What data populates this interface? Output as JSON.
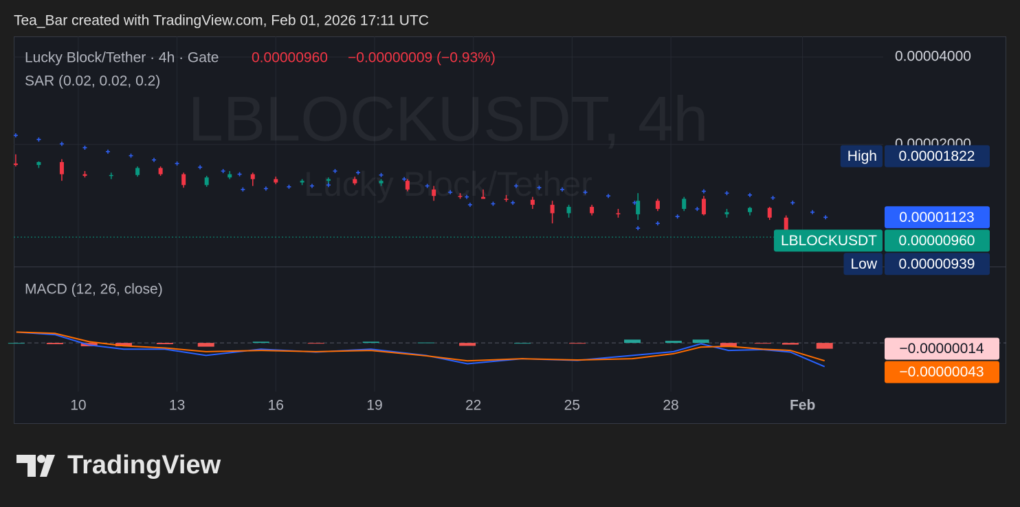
{
  "header": "Tea_Bar created with TradingView.com, Feb 01, 2026 17:11 UTC",
  "brand": "TradingView",
  "chart_data": [
    {
      "type": "candlestick",
      "title": "Lucky Block/Tether · 4h · Gate",
      "last": "0.00000960",
      "change": "−0.00000009 (−0.93%)",
      "watermark": "LBLOCKUSDT, 4h",
      "watermark_sub": "Lucky Block/Tether",
      "x": [
        8.1,
        8.8,
        9.5,
        10.2,
        11.0,
        11.8,
        12.5,
        13.2,
        13.9,
        14.6,
        15.3,
        16.0,
        16.8,
        17.6,
        18.4,
        19.2,
        20.0,
        20.8,
        21.6,
        22.3,
        23.0,
        23.8,
        24.4,
        24.9,
        25.6,
        26.4,
        27.0,
        27.6,
        28.4,
        29.0,
        29.7,
        30.4,
        31.0,
        31.5
      ],
      "open": [
        1.72e-05,
        1.7e-05,
        1.74e-05,
        1.58e-05,
        1.56e-05,
        1.57e-05,
        1.66e-05,
        1.58e-05,
        1.45e-05,
        1.54e-05,
        1.58e-05,
        1.52e-05,
        1.48e-05,
        1.5e-05,
        1.52e-05,
        1.47e-05,
        1.5e-05,
        1.4e-05,
        1.33e-05,
        1.32e-05,
        1.3e-05,
        1.29e-05,
        1.24e-05,
        1.16e-05,
        1.22e-05,
        1.16e-05,
        1.15e-05,
        1.28e-05,
        1.2e-05,
        1.3e-05,
        1.15e-05,
        1.17e-05,
        1.21e-05,
        1.12e-05
      ],
      "high": [
        1.85e-05,
        1.75e-05,
        1.78e-05,
        1.62e-05,
        1.6e-05,
        1.68e-05,
        1.68e-05,
        1.6e-05,
        1.56e-05,
        1.62e-05,
        1.6e-05,
        1.55e-05,
        1.52e-05,
        1.54e-05,
        1.55e-05,
        1.52e-05,
        1.52e-05,
        1.44e-05,
        1.36e-05,
        1.4e-05,
        1.34e-05,
        1.32e-05,
        1.28e-05,
        1.24e-05,
        1.24e-05,
        1.2e-05,
        1.36e-05,
        1.3e-05,
        1.32e-05,
        1.33e-05,
        1.2e-05,
        1.22e-05,
        1.22e-05,
        1.14e-05
      ],
      "low": [
        1.68e-05,
        1.66e-05,
        1.5e-05,
        1.54e-05,
        1.52e-05,
        1.55e-05,
        1.56e-05,
        1.42e-05,
        1.43e-05,
        1.52e-05,
        1.44e-05,
        1.46e-05,
        1.45e-05,
        1.46e-05,
        1.45e-05,
        1.44e-05,
        1.38e-05,
        1.28e-05,
        1.3e-05,
        1.3e-05,
        1.27e-05,
        1.2e-05,
        1.07e-05,
        1.12e-05,
        1.14e-05,
        1.12e-05,
        1.1e-05,
        1.18e-05,
        1.18e-05,
        1.14e-05,
        1.12e-05,
        1.14e-05,
        1.1e-05,
        9.4e-06
      ],
      "close": [
        1.7e-05,
        1.74e-05,
        1.58e-05,
        1.56e-05,
        1.57e-05,
        1.66e-05,
        1.58e-05,
        1.45e-05,
        1.54e-05,
        1.58e-05,
        1.52e-05,
        1.48e-05,
        1.5e-05,
        1.52e-05,
        1.47e-05,
        1.5e-05,
        1.4e-05,
        1.33e-05,
        1.32e-05,
        1.3e-05,
        1.29e-05,
        1.24e-05,
        1.16e-05,
        1.22e-05,
        1.16e-05,
        1.15e-05,
        1.28e-05,
        1.2e-05,
        1.3e-05,
        1.15e-05,
        1.17e-05,
        1.21e-05,
        1.12e-05,
        9.6e-06
      ],
      "up_color": "#089981",
      "down_color": "#f23645",
      "xlim": [
        8.04,
        34.45
      ],
      "xticks": [
        10,
        13,
        16,
        19,
        22,
        25,
        28,
        {
          "value": 32,
          "label": "Feb"
        }
      ],
      "ylim": [
        7.6e-06,
        4.71e-05
      ],
      "yticks": [
        {
          "value": 4e-05,
          "label": "0.00004000"
        },
        {
          "value": 2e-05,
          "label": "0.00002000"
        }
      ],
      "log_scale": true,
      "grid": true,
      "sar": {
        "name": "SAR (0.02, 0.02, 0.2)",
        "color": "#2f5ff0",
        "x": [
          8.1,
          8.8,
          9.5,
          10.2,
          10.9,
          11.6,
          12.3,
          13.0,
          13.7,
          14.4,
          14.9,
          15.0,
          15.7,
          16.4,
          17.1,
          17.6,
          17.8,
          18.5,
          19.2,
          19.9,
          20.6,
          21.3,
          21.8,
          21.9,
          22.6,
          23.2,
          23.3,
          24.0,
          24.7,
          25.4,
          26.1,
          26.9,
          27.0,
          27.6,
          28.2,
          28.8,
          29.0,
          29.7,
          30.4,
          31.1,
          31.7,
          32.3,
          32.7
        ],
        "values": [
          2.15e-05,
          2.08e-05,
          2.01e-05,
          1.95e-05,
          1.89e-05,
          1.83e-05,
          1.77e-05,
          1.72e-05,
          1.67e-05,
          1.62e-05,
          1.58e-05,
          1.4e-05,
          1.41e-05,
          1.43e-05,
          1.44e-05,
          1.45e-05,
          1.62e-05,
          1.6e-05,
          1.57e-05,
          1.52e-05,
          1.44e-05,
          1.37e-05,
          1.32e-05,
          1.24e-05,
          1.25e-05,
          1.26e-05,
          1.44e-05,
          1.42e-05,
          1.4e-05,
          1.37e-05,
          1.33e-05,
          1.26e-05,
          1.03e-05,
          1.07e-05,
          1.13e-05,
          1.2e-05,
          1.38e-05,
          1.36e-05,
          1.34e-05,
          1.31e-05,
          1.26e-05,
          1.17e-05,
          1.123e-05
        ]
      },
      "badges": [
        {
          "name": "High",
          "value": 1.822e-05,
          "label": "0.00001822",
          "color": "#132e63"
        },
        {
          "value": 1.123e-05,
          "label": "0.00001123",
          "color": "#2962ff"
        },
        {
          "name": "LBLOCKUSDT",
          "value": 9.6e-06,
          "label": "0.00000960",
          "color": "#089981"
        },
        {
          "name": "Low",
          "value": 9.39e-06,
          "label": "0.00000939",
          "color": "#132e63"
        }
      ]
    },
    {
      "type": "macd",
      "title": "MACD (12, 26, close)",
      "x": [
        8.12,
        9.29,
        10.33,
        11.38,
        12.63,
        13.88,
        15.55,
        17.22,
        18.89,
        20.56,
        21.82,
        23.49,
        25.16,
        26.83,
        28.08,
        28.91,
        29.75,
        30.79,
        31.63,
        32.67
      ],
      "series": [
        {
          "color": "#2962ff",
          "values": [
            2.6e-07,
            2e-07,
            -5e-08,
            -1.5e-07,
            -1.5e-07,
            -3e-07,
            -1.5e-07,
            -2.2e-07,
            -1.5e-07,
            -3e-07,
            -5e-07,
            -3.8e-07,
            -4.2e-07,
            -3e-07,
            -2.1e-07,
            -2e-08,
            -1.8e-07,
            -1.6e-07,
            -2.2e-07,
            -5.7e-07
          ]
        },
        {
          "color": "#ff6d00",
          "values": [
            2.6e-07,
            2.3e-07,
            3e-08,
            -7e-08,
            -1.2e-07,
            -2.1e-07,
            -1.8e-07,
            -2.1e-07,
            -1.8e-07,
            -3.1e-07,
            -4.3e-07,
            -3.8e-07,
            -4.1e-07,
            -3.8e-07,
            -2.6e-07,
            -1e-07,
            -8e-08,
            -1.5e-07,
            -1.8e-07,
            -4.3e-07
          ]
        }
      ],
      "histogram": {
        "up_color": "#26a69a",
        "down_color": "#ef5350",
        "values": [
          0,
          -3e-08,
          -8e-08,
          -8e-08,
          -3e-08,
          -9e-08,
          3e-08,
          -1e-08,
          3e-08,
          1e-08,
          -7e-08,
          0,
          -1e-08,
          8e-08,
          5e-08,
          8e-08,
          -1e-07,
          -1e-08,
          -4e-08,
          -1.4e-07
        ]
      },
      "ylim": [
        -1.17e-06,
        1.82e-06
      ],
      "badges": [
        {
          "value": -1.4e-07,
          "label": "−0.00000014",
          "color": "#ffcdd2",
          "text_color": "#131722"
        },
        {
          "value": -4.3e-07,
          "label": "−0.00000043",
          "color": "#ff6d00",
          "text_color": "#ffffff"
        }
      ]
    }
  ]
}
